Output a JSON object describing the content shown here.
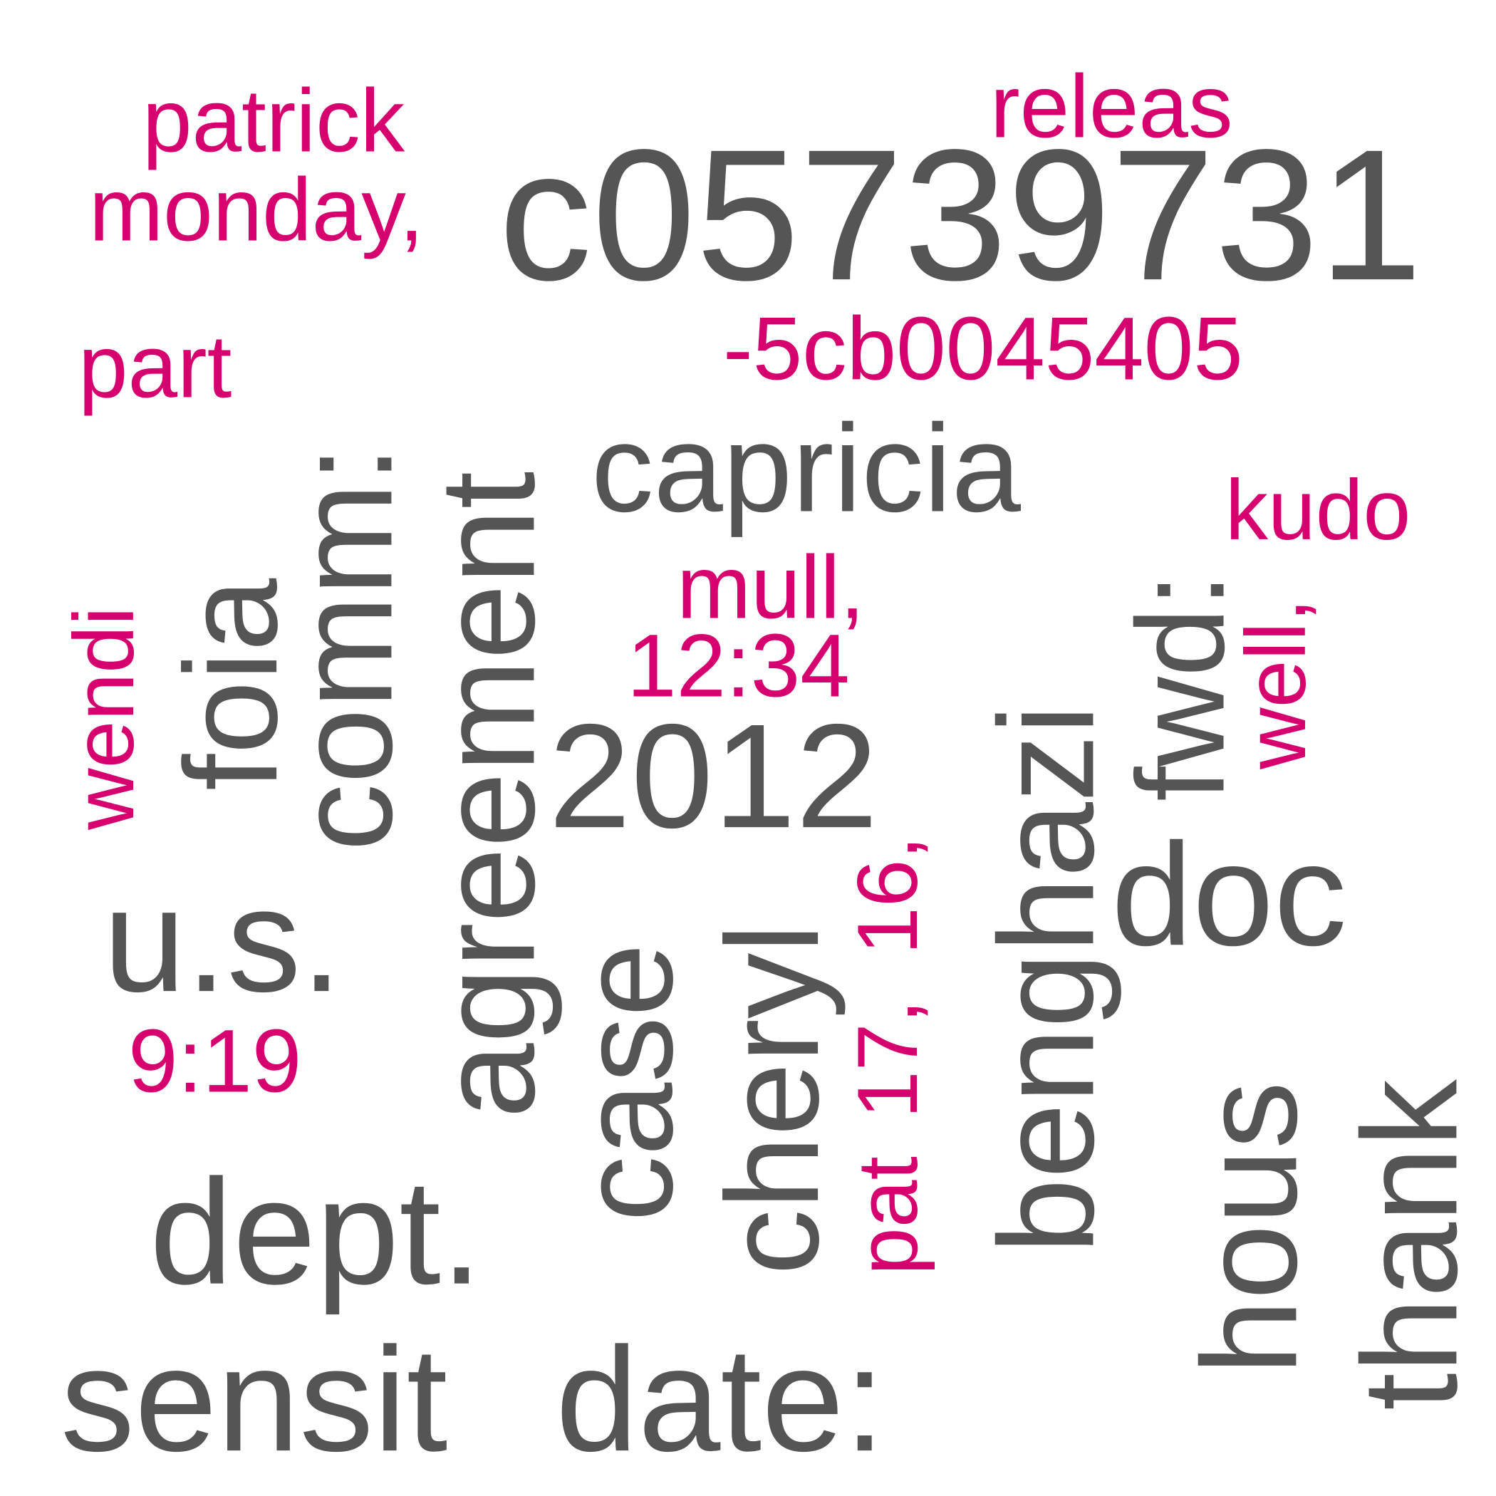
{
  "colors": {
    "primary": "#555555",
    "accent": "#d6006f",
    "background": "#ffffff"
  },
  "words": [
    {
      "text": "c05739731",
      "color": "primary"
    },
    {
      "text": "sensit",
      "color": "primary"
    },
    {
      "text": "date:",
      "color": "primary"
    },
    {
      "text": "dept.",
      "color": "primary"
    },
    {
      "text": "u.s.",
      "color": "primary"
    },
    {
      "text": "capricia",
      "color": "primary"
    },
    {
      "text": "2012",
      "color": "primary"
    },
    {
      "text": "doc",
      "color": "primary"
    },
    {
      "text": "agreement",
      "color": "primary"
    },
    {
      "text": "comm:",
      "color": "primary"
    },
    {
      "text": "foia",
      "color": "primary"
    },
    {
      "text": "case",
      "color": "primary"
    },
    {
      "text": "cheryl",
      "color": "primary"
    },
    {
      "text": "benghazi",
      "color": "primary"
    },
    {
      "text": "fwd:",
      "color": "primary"
    },
    {
      "text": "hous",
      "color": "primary"
    },
    {
      "text": "thank",
      "color": "primary"
    },
    {
      "text": "patrick",
      "color": "accent"
    },
    {
      "text": "releas",
      "color": "accent"
    },
    {
      "text": "monday,",
      "color": "accent"
    },
    {
      "text": "-5cb0045405",
      "color": "accent"
    },
    {
      "text": "part",
      "color": "accent"
    },
    {
      "text": "kudo",
      "color": "accent"
    },
    {
      "text": "mull,",
      "color": "accent"
    },
    {
      "text": "12:34",
      "color": "accent"
    },
    {
      "text": "9:19",
      "color": "accent"
    },
    {
      "text": "wendi",
      "color": "accent"
    },
    {
      "text": "well,",
      "color": "accent"
    },
    {
      "text": "16,",
      "color": "accent"
    },
    {
      "text": "17,",
      "color": "accent"
    },
    {
      "text": "pat",
      "color": "accent"
    }
  ]
}
